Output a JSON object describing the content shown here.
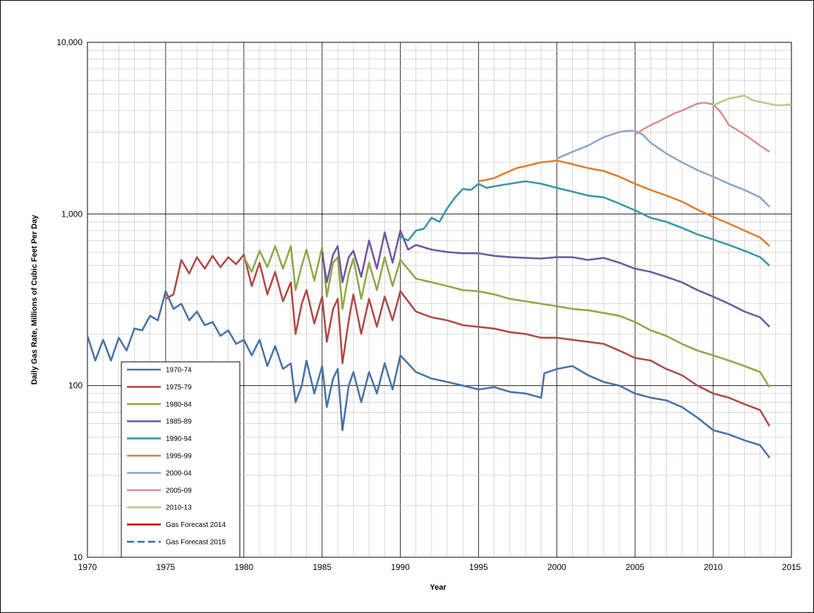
{
  "chart_data": {
    "type": "line",
    "title": "",
    "xlabel": "Year",
    "ylabel": "Daily Gas Rate, Millions of Cubic Feet Per Day",
    "xlim": [
      1970,
      2015
    ],
    "ylim": [
      10,
      10000
    ],
    "yscale": "log",
    "grid": true,
    "legend_position": "bottom-left",
    "x_ticks": [
      "1970",
      "1975",
      "1980",
      "1985",
      "1990",
      "1995",
      "2000",
      "2005",
      "2010",
      "2015"
    ],
    "y_ticks": [
      "10",
      "100",
      "1,000",
      "10,000"
    ],
    "series": [
      {
        "name": "1970-74",
        "color": "#4A72A8",
        "style": "solid",
        "x": [
          1970.0,
          1970.5,
          1971.0,
          1971.5,
          1972.0,
          1972.5,
          1973.0,
          1973.5,
          1974.0,
          1974.5,
          1975.0,
          1975.5,
          1976.0,
          1976.5,
          1977.0,
          1977.5,
          1978.0,
          1978.5,
          1979.0,
          1979.5,
          1980.0,
          1980.5,
          1981.0,
          1981.5,
          1982.0,
          1982.5,
          1983.0,
          1983.3,
          1983.7,
          1984.0,
          1984.5,
          1985.0,
          1985.3,
          1985.7,
          1986.0,
          1986.3,
          1986.7,
          1987.0,
          1987.5,
          1988.0,
          1988.5,
          1989.0,
          1989.5,
          1990.0,
          1991.0,
          1992.0,
          1993.0,
          1994.0,
          1995.0,
          1996.0,
          1997.0,
          1998.0,
          1999.0,
          1999.2,
          2000.0,
          2001.0,
          2002.0,
          2003.0,
          2004.0,
          2005.0,
          2006.0,
          2007.0,
          2008.0,
          2009.0,
          2010.0,
          2011.0,
          2012.0,
          2013.0,
          2013.6
        ],
        "y": [
          195,
          140,
          185,
          140,
          190,
          160,
          215,
          210,
          255,
          240,
          355,
          280,
          300,
          240,
          270,
          225,
          235,
          195,
          210,
          175,
          185,
          150,
          185,
          130,
          170,
          125,
          135,
          80,
          100,
          140,
          90,
          130,
          75,
          110,
          125,
          55,
          100,
          120,
          80,
          120,
          90,
          135,
          95,
          150,
          120,
          110,
          105,
          100,
          95,
          98,
          92,
          90,
          85,
          118,
          125,
          130,
          115,
          105,
          100,
          90,
          85,
          82,
          75,
          65,
          55,
          52,
          48,
          45,
          38
        ]
      },
      {
        "name": "1975-79",
        "color": "#B04A47",
        "style": "solid",
        "x": [
          1975.0,
          1975.5,
          1976.0,
          1976.5,
          1977.0,
          1977.5,
          1978.0,
          1978.5,
          1979.0,
          1979.5,
          1980.0,
          1980.5,
          1981.0,
          1981.5,
          1982.0,
          1982.5,
          1983.0,
          1983.3,
          1983.7,
          1984.0,
          1984.5,
          1985.0,
          1985.3,
          1985.7,
          1986.0,
          1986.3,
          1986.7,
          1987.0,
          1987.5,
          1988.0,
          1988.5,
          1989.0,
          1989.5,
          1990.0,
          1991.0,
          1992.0,
          1993.0,
          1994.0,
          1995.0,
          1996.0,
          1997.0,
          1998.0,
          1999.0,
          2000.0,
          2001.0,
          2002.0,
          2003.0,
          2004.0,
          2005.0,
          2006.0,
          2007.0,
          2008.0,
          2009.0,
          2010.0,
          2011.0,
          2012.0,
          2013.0,
          2013.6
        ],
        "y": [
          320,
          340,
          540,
          450,
          560,
          480,
          570,
          490,
          560,
          510,
          580,
          380,
          520,
          340,
          460,
          310,
          400,
          200,
          300,
          360,
          230,
          330,
          180,
          280,
          320,
          135,
          240,
          340,
          200,
          320,
          220,
          330,
          240,
          355,
          270,
          250,
          240,
          225,
          220,
          215,
          205,
          200,
          190,
          190,
          185,
          180,
          175,
          160,
          145,
          140,
          125,
          115,
          100,
          90,
          85,
          78,
          72,
          58
        ]
      },
      {
        "name": "1980-84",
        "color": "#8BAA48",
        "style": "solid",
        "x": [
          1980.0,
          1980.5,
          1981.0,
          1981.5,
          1982.0,
          1982.5,
          1983.0,
          1983.3,
          1983.7,
          1984.0,
          1984.5,
          1985.0,
          1985.3,
          1985.7,
          1986.0,
          1986.3,
          1986.7,
          1987.0,
          1987.5,
          1988.0,
          1988.5,
          1989.0,
          1989.5,
          1990.0,
          1991.0,
          1992.0,
          1993.0,
          1994.0,
          1995.0,
          1996.0,
          1997.0,
          1998.0,
          1999.0,
          2000.0,
          2001.0,
          2002.0,
          2003.0,
          2004.0,
          2005.0,
          2006.0,
          2007.0,
          2008.0,
          2009.0,
          2010.0,
          2011.0,
          2012.0,
          2013.0,
          2013.6
        ],
        "y": [
          560,
          460,
          610,
          490,
          650,
          480,
          650,
          360,
          500,
          620,
          410,
          640,
          330,
          520,
          560,
          280,
          450,
          550,
          320,
          520,
          360,
          560,
          380,
          540,
          420,
          400,
          380,
          360,
          355,
          340,
          320,
          310,
          300,
          290,
          280,
          275,
          265,
          255,
          235,
          210,
          195,
          175,
          160,
          150,
          140,
          130,
          120,
          98
        ]
      },
      {
        "name": "1985-89",
        "color": "#7257A0",
        "style": "solid",
        "x": [
          1985.0,
          1985.3,
          1985.7,
          1986.0,
          1986.3,
          1986.7,
          1987.0,
          1987.5,
          1988.0,
          1988.5,
          1989.0,
          1989.5,
          1990.0,
          1990.5,
          1991.0,
          1992.0,
          1993.0,
          1994.0,
          1995.0,
          1996.0,
          1997.0,
          1998.0,
          1999.0,
          2000.0,
          2001.0,
          2002.0,
          2003.0,
          2004.0,
          2005.0,
          2006.0,
          2007.0,
          2008.0,
          2009.0,
          2010.0,
          2011.0,
          2012.0,
          2013.0,
          2013.6
        ],
        "y": [
          600,
          400,
          580,
          650,
          400,
          560,
          610,
          430,
          700,
          480,
          780,
          520,
          800,
          620,
          660,
          620,
          600,
          590,
          590,
          570,
          560,
          555,
          550,
          560,
          560,
          540,
          555,
          520,
          480,
          460,
          430,
          400,
          360,
          330,
          300,
          270,
          250,
          220
        ]
      },
      {
        "name": "1990-94",
        "color": "#3A95A8",
        "style": "solid",
        "x": [
          1990.0,
          1990.5,
          1991.0,
          1991.5,
          1992.0,
          1992.5,
          1993.0,
          1993.5,
          1994.0,
          1994.5,
          1995.0,
          1995.5,
          1996.0,
          1997.0,
          1998.0,
          1999.0,
          2000.0,
          2001.0,
          2002.0,
          2003.0,
          2004.0,
          2005.0,
          2006.0,
          2007.0,
          2008.0,
          2009.0,
          2010.0,
          2011.0,
          2012.0,
          2013.0,
          2013.6
        ],
        "y": [
          740,
          700,
          800,
          820,
          950,
          900,
          1080,
          1250,
          1400,
          1380,
          1500,
          1420,
          1450,
          1500,
          1550,
          1500,
          1420,
          1350,
          1280,
          1250,
          1150,
          1050,
          950,
          900,
          830,
          760,
          710,
          660,
          610,
          560,
          500
        ]
      },
      {
        "name": "1995-99",
        "color": "#E07F2E",
        "style": "solid",
        "x": [
          1995.0,
          1995.5,
          1996.0,
          1996.5,
          1997.0,
          1997.5,
          1998.0,
          1998.5,
          1999.0,
          1999.5,
          2000.0,
          2001.0,
          2002.0,
          2003.0,
          2004.0,
          2005.0,
          2006.0,
          2007.0,
          2008.0,
          2009.0,
          2010.0,
          2011.0,
          2012.0,
          2013.0,
          2013.6
        ],
        "y": [
          1550,
          1580,
          1620,
          1700,
          1780,
          1860,
          1900,
          1950,
          2000,
          2020,
          2050,
          1950,
          1850,
          1780,
          1650,
          1500,
          1380,
          1280,
          1180,
          1060,
          960,
          880,
          800,
          730,
          650
        ]
      },
      {
        "name": "2000-04",
        "color": "#8EA6C9",
        "style": "solid",
        "x": [
          2000.0,
          2000.5,
          2001.0,
          2001.5,
          2002.0,
          2002.5,
          2003.0,
          2003.5,
          2004.0,
          2004.5,
          2005.0,
          2005.5,
          2006.0,
          2007.0,
          2008.0,
          2009.0,
          2010.0,
          2011.0,
          2012.0,
          2013.0,
          2013.6
        ],
        "y": [
          2100,
          2200,
          2300,
          2400,
          2500,
          2650,
          2800,
          2900,
          3000,
          3050,
          3050,
          2900,
          2600,
          2250,
          2000,
          1800,
          1650,
          1500,
          1380,
          1250,
          1100
        ]
      },
      {
        "name": "2005-09",
        "color": "#D9908D",
        "style": "solid",
        "x": [
          2005.0,
          2005.5,
          2006.0,
          2006.5,
          2007.0,
          2007.5,
          2008.0,
          2008.5,
          2009.0,
          2009.5,
          2010.0,
          2010.5,
          2011.0,
          2011.5,
          2012.0,
          2012.5,
          2013.0,
          2013.6
        ],
        "y": [
          2900,
          3100,
          3300,
          3450,
          3650,
          3850,
          4000,
          4200,
          4400,
          4450,
          4350,
          3900,
          3300,
          3100,
          2900,
          2700,
          2500,
          2300
        ]
      },
      {
        "name": "2010-13",
        "color": "#B5CC8E",
        "style": "solid",
        "x": [
          2010.0,
          2010.5,
          2011.0,
          2011.5,
          2012.0,
          2012.5,
          2013.0,
          2013.5,
          2014.0,
          2014.5,
          2015.0
        ],
        "y": [
          4300,
          4500,
          4700,
          4800,
          4900,
          4600,
          4500,
          4400,
          4300,
          4300,
          4350
        ]
      },
      {
        "name": "Gas Forecast 2014",
        "color": "#C00000",
        "style": "solid",
        "x": [],
        "y": []
      },
      {
        "name": "Gas Forecast 2015",
        "color": "#2E6BA8",
        "style": "dashed",
        "x": [],
        "y": []
      }
    ]
  }
}
